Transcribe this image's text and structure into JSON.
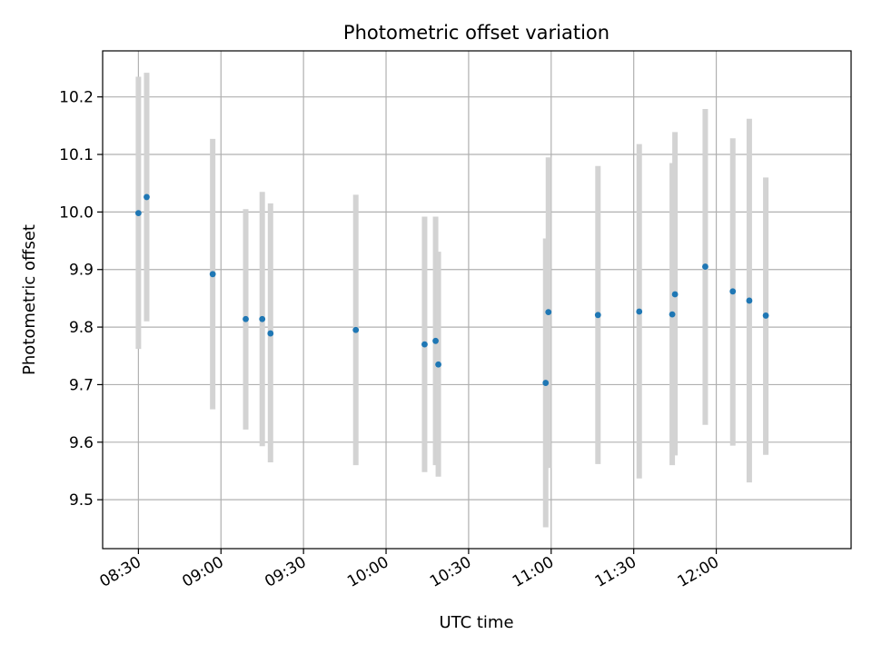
{
  "chart_data": {
    "type": "scatter",
    "title": "Photometric offset variation",
    "xlabel": "UTC time",
    "ylabel": "Photometric offset",
    "x_tick_labels": [
      "08:30",
      "09:00",
      "09:30",
      "10:00",
      "10:30",
      "11:00",
      "11:30",
      "12:00"
    ],
    "y_tick_labels": [
      "9.5",
      "9.6",
      "9.7",
      "9.8",
      "9.9",
      "10.0",
      "10.1",
      "10.2"
    ],
    "xlim": [
      "08:17",
      "12:49"
    ],
    "ylim": [
      9.415,
      10.28
    ],
    "grid": true,
    "point_color": "#1f77b4",
    "errorbar_color": "#d3d3d3",
    "points": [
      {
        "time": "08:30",
        "y": 9.998,
        "ylow": 9.762,
        "yhigh": 10.235
      },
      {
        "time": "08:33",
        "y": 10.026,
        "ylow": 9.81,
        "yhigh": 10.242
      },
      {
        "time": "08:57",
        "y": 9.892,
        "ylow": 9.657,
        "yhigh": 10.127
      },
      {
        "time": "09:09",
        "y": 9.814,
        "ylow": 9.622,
        "yhigh": 10.005
      },
      {
        "time": "09:15",
        "y": 9.814,
        "ylow": 9.593,
        "yhigh": 10.035
      },
      {
        "time": "09:18",
        "y": 9.789,
        "ylow": 9.565,
        "yhigh": 10.015
      },
      {
        "time": "09:49",
        "y": 9.795,
        "ylow": 9.56,
        "yhigh": 10.03
      },
      {
        "time": "10:14",
        "y": 9.77,
        "ylow": 9.548,
        "yhigh": 9.992
      },
      {
        "time": "10:18",
        "y": 9.776,
        "ylow": 9.56,
        "yhigh": 9.992
      },
      {
        "time": "10:19",
        "y": 9.735,
        "ylow": 9.54,
        "yhigh": 9.931
      },
      {
        "time": "10:58",
        "y": 9.703,
        "ylow": 9.452,
        "yhigh": 9.954
      },
      {
        "time": "10:59",
        "y": 9.826,
        "ylow": 9.555,
        "yhigh": 10.095
      },
      {
        "time": "11:17",
        "y": 9.821,
        "ylow": 9.562,
        "yhigh": 10.08
      },
      {
        "time": "11:32",
        "y": 9.827,
        "ylow": 9.537,
        "yhigh": 10.118
      },
      {
        "time": "11:44",
        "y": 9.822,
        "ylow": 9.56,
        "yhigh": 10.085
      },
      {
        "time": "11:45",
        "y": 9.857,
        "ylow": 9.577,
        "yhigh": 10.139
      },
      {
        "time": "11:56",
        "y": 9.905,
        "ylow": 9.63,
        "yhigh": 10.179
      },
      {
        "time": "12:06",
        "y": 9.862,
        "ylow": 9.594,
        "yhigh": 10.128
      },
      {
        "time": "12:12",
        "y": 9.846,
        "ylow": 9.53,
        "yhigh": 10.162
      },
      {
        "time": "12:18",
        "y": 9.82,
        "ylow": 9.578,
        "yhigh": 10.06
      }
    ]
  }
}
